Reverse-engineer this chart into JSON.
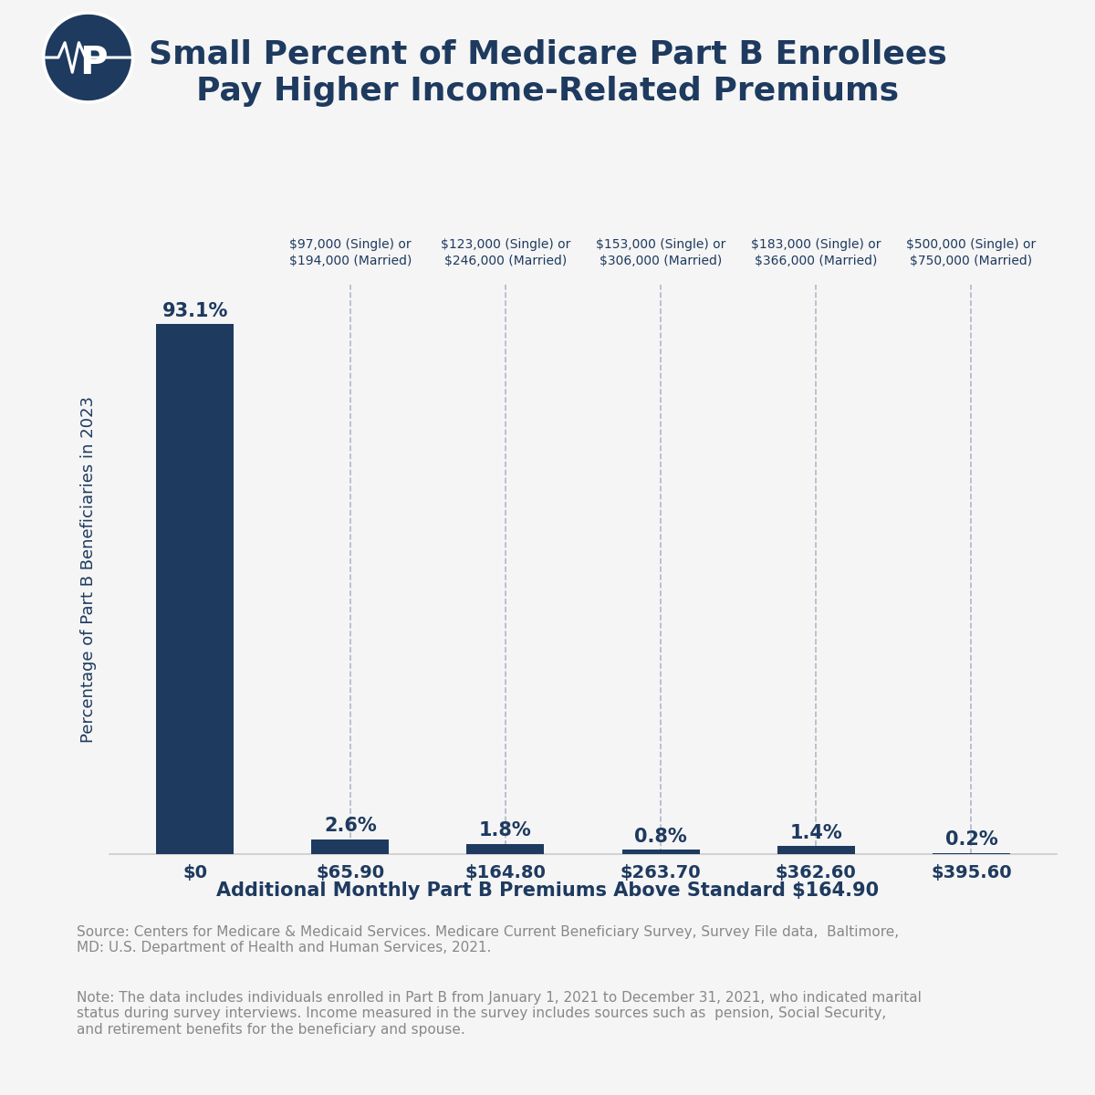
{
  "title_line1": "Small Percent of Medicare Part B Enrollees",
  "title_line2": "Pay Higher Income-Related Premiums",
  "bar_labels": [
    "$0",
    "$65.90",
    "$164.80",
    "$263.70",
    "$362.60",
    "$395.60"
  ],
  "bar_values": [
    93.1,
    2.6,
    1.8,
    0.8,
    1.4,
    0.2
  ],
  "bar_value_labels": [
    "93.1%",
    "2.6%",
    "1.8%",
    "0.8%",
    "1.4%",
    "0.2%"
  ],
  "bar_color": "#1e3a5f",
  "background_color": "#f5f5f5",
  "xlabel": "Additional Monthly Part B Premiums Above Standard $164.90",
  "ylabel": "Percentage of Part B Beneficiaries in 2023",
  "ylim": [
    0,
    100
  ],
  "income_labels": [
    "$97,000 (Single) or\n$194,000 (Married)",
    "$123,000 (Single) or\n$246,000 (Married)",
    "$153,000 (Single) or\n$306,000 (Married)",
    "$183,000 (Single) or\n$366,000 (Married)",
    "$500,000 (Single) or\n$750,000 (Married)"
  ],
  "source_text": "Source: Centers for Medicare & Medicaid Services. Medicare Current Beneficiary Survey, Survey File data,  Baltimore,\nMD: U.S. Department of Health and Human Services, 2021.",
  "note_text": "Note: The data includes individuals enrolled in Part B from January 1, 2021 to December 31, 2021, who indicated marital\nstatus during survey interviews. Income measured in the survey includes sources such as  pension, Social Security,\nand retirement benefits for the beneficiary and spouse.",
  "title_color": "#1e3a5f",
  "label_color": "#1e3a5f",
  "grid_color": "#b0b8c8",
  "tick_label_color": "#1e3a5f",
  "source_note_color": "#888888",
  "logo_color": "#1e3a5f",
  "xlabel_fontsize": 15,
  "ylabel_fontsize": 13,
  "title_fontsize": 26,
  "bar_label_fontsize": 15,
  "tick_fontsize": 14,
  "income_label_fontsize": 10,
  "source_fontsize": 11,
  "note_fontsize": 11
}
